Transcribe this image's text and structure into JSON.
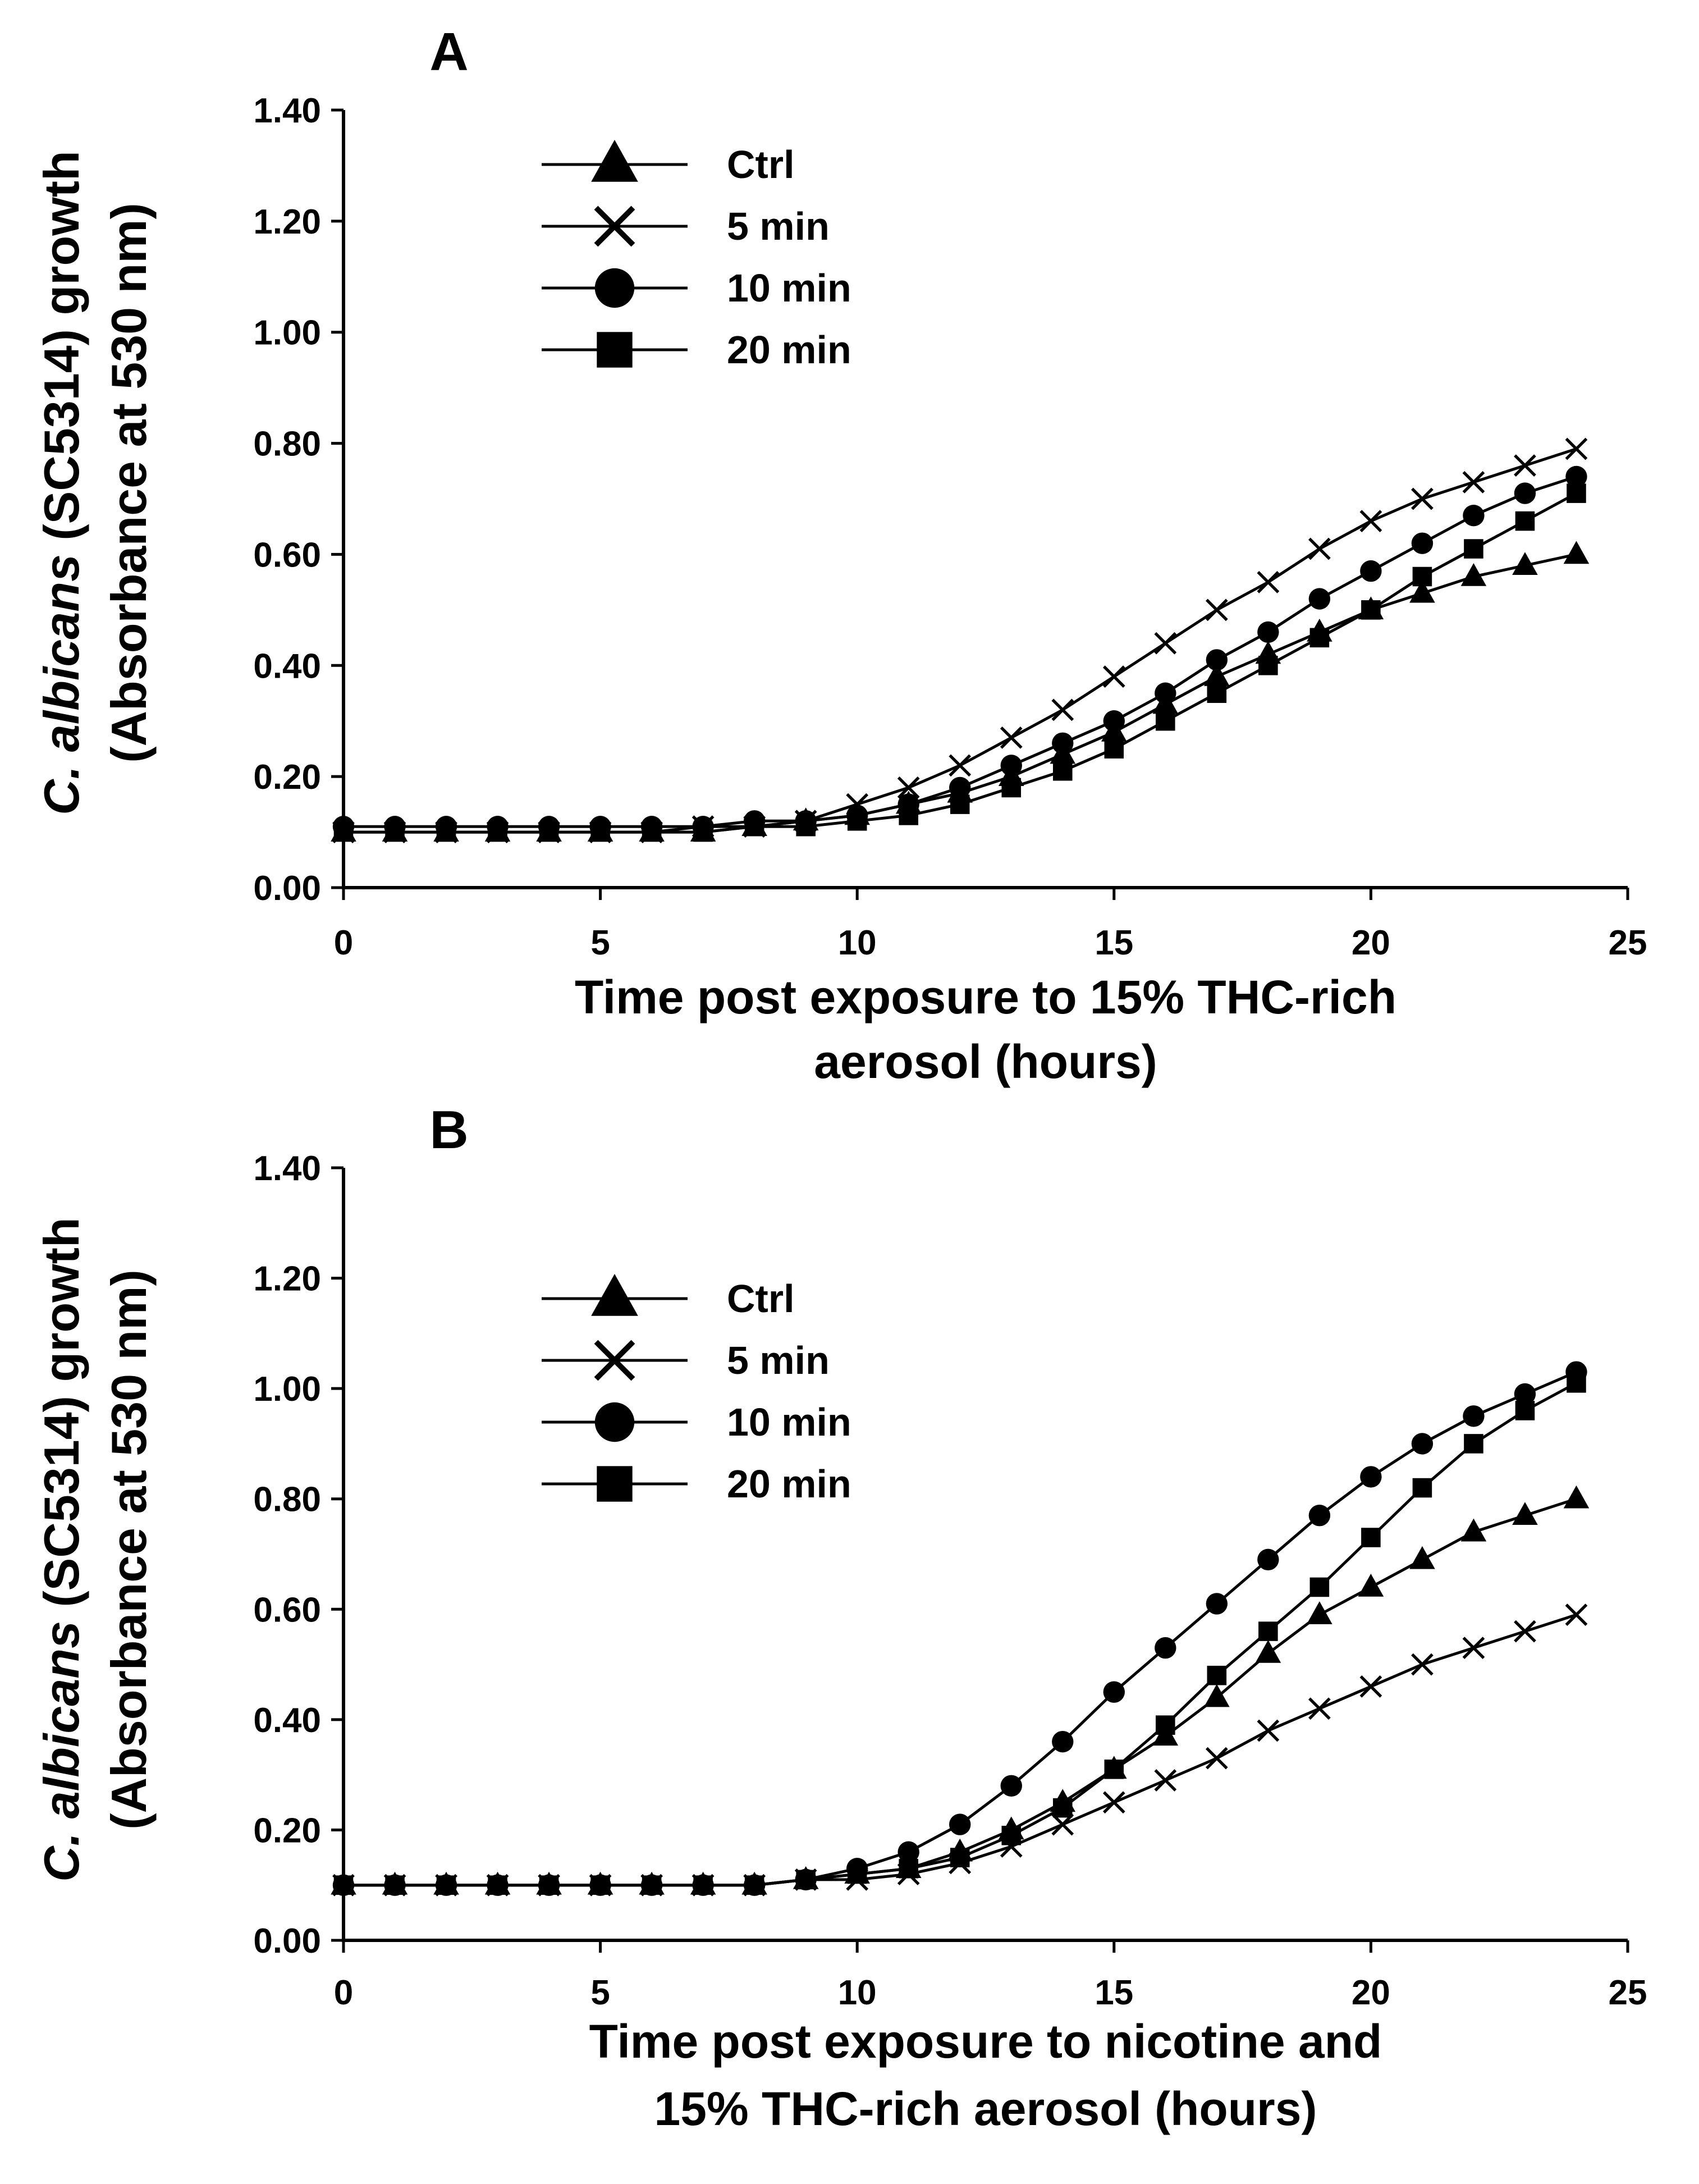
{
  "chart_data": [
    {
      "type": "line",
      "panel": "A",
      "x": [
        0,
        1,
        2,
        3,
        4,
        5,
        6,
        7,
        8,
        9,
        10,
        11,
        12,
        13,
        14,
        15,
        16,
        17,
        18,
        19,
        20,
        21,
        22,
        23,
        24
      ],
      "xlim": [
        0,
        25
      ],
      "xticks": [
        "0",
        "5",
        "10",
        "15",
        "20",
        "25"
      ],
      "ylim": [
        0,
        1.4
      ],
      "yticks": [
        "0.00",
        "0.20",
        "0.40",
        "0.60",
        "0.80",
        "1.00",
        "1.20",
        "1.40"
      ],
      "ylabel_part1": "C. albicans",
      "ylabel_part2": " (SC5314) growth",
      "ylabel_line2": "(Absorbance at  530 nm)",
      "xlabel_lines": [
        "Time post exposure to 15% THC-rich",
        "aerosol (hours)"
      ],
      "series": [
        {
          "name": "Ctrl",
          "marker": "triangle",
          "values": [
            0.1,
            0.1,
            0.1,
            0.1,
            0.1,
            0.1,
            0.1,
            0.1,
            0.11,
            0.12,
            0.13,
            0.15,
            0.17,
            0.2,
            0.24,
            0.28,
            0.33,
            0.38,
            0.42,
            0.46,
            0.5,
            0.53,
            0.56,
            0.58,
            0.6
          ]
        },
        {
          "name": "5 min",
          "marker": "x",
          "values": [
            0.1,
            0.1,
            0.1,
            0.1,
            0.1,
            0.1,
            0.1,
            0.11,
            0.11,
            0.12,
            0.15,
            0.18,
            0.22,
            0.27,
            0.32,
            0.38,
            0.44,
            0.5,
            0.55,
            0.61,
            0.66,
            0.7,
            0.73,
            0.76,
            0.79
          ]
        },
        {
          "name": "10 min",
          "marker": "circle",
          "values": [
            0.11,
            0.11,
            0.11,
            0.11,
            0.11,
            0.11,
            0.11,
            0.11,
            0.12,
            0.12,
            0.13,
            0.15,
            0.18,
            0.22,
            0.26,
            0.3,
            0.35,
            0.41,
            0.46,
            0.52,
            0.57,
            0.62,
            0.67,
            0.71,
            0.74
          ]
        },
        {
          "name": "20 min",
          "marker": "square",
          "values": [
            0.1,
            0.1,
            0.1,
            0.1,
            0.1,
            0.1,
            0.1,
            0.1,
            0.11,
            0.11,
            0.12,
            0.13,
            0.15,
            0.18,
            0.21,
            0.25,
            0.3,
            0.35,
            0.4,
            0.45,
            0.5,
            0.56,
            0.61,
            0.66,
            0.71
          ]
        }
      ]
    },
    {
      "type": "line",
      "panel": "B",
      "x": [
        0,
        1,
        2,
        3,
        4,
        5,
        6,
        7,
        8,
        9,
        10,
        11,
        12,
        13,
        14,
        15,
        16,
        17,
        18,
        19,
        20,
        21,
        22,
        23,
        24
      ],
      "xlim": [
        0,
        25
      ],
      "xticks": [
        "0",
        "5",
        "10",
        "15",
        "20",
        "25"
      ],
      "ylim": [
        0,
        1.4
      ],
      "yticks": [
        "0.00",
        "0.20",
        "0.40",
        "0.60",
        "0.80",
        "1.00",
        "1.20",
        "1.40"
      ],
      "ylabel_part1": "C. albicans",
      "ylabel_part2": " (SC5314) growth",
      "ylabel_line2": "(Absorbance at  530 nm)",
      "xlabel_lines": [
        "Time post exposure to nicotine and",
        "15% THC-rich aerosol (hours)"
      ],
      "series": [
        {
          "name": "Ctrl",
          "marker": "triangle",
          "values": [
            0.1,
            0.1,
            0.1,
            0.1,
            0.1,
            0.1,
            0.1,
            0.1,
            0.1,
            0.11,
            0.12,
            0.13,
            0.16,
            0.2,
            0.25,
            0.31,
            0.37,
            0.44,
            0.52,
            0.59,
            0.64,
            0.69,
            0.74,
            0.77,
            0.8
          ]
        },
        {
          "name": "5 min",
          "marker": "x",
          "values": [
            0.1,
            0.1,
            0.1,
            0.1,
            0.1,
            0.1,
            0.1,
            0.1,
            0.1,
            0.11,
            0.11,
            0.12,
            0.14,
            0.17,
            0.21,
            0.25,
            0.29,
            0.33,
            0.38,
            0.42,
            0.46,
            0.5,
            0.53,
            0.56,
            0.59
          ]
        },
        {
          "name": "10 min",
          "marker": "circle",
          "values": [
            0.1,
            0.1,
            0.1,
            0.1,
            0.1,
            0.1,
            0.1,
            0.1,
            0.1,
            0.11,
            0.13,
            0.16,
            0.21,
            0.28,
            0.36,
            0.45,
            0.53,
            0.61,
            0.69,
            0.77,
            0.84,
            0.9,
            0.95,
            0.99,
            1.03
          ]
        },
        {
          "name": "20 min",
          "marker": "square",
          "values": [
            0.1,
            0.1,
            0.1,
            0.1,
            0.1,
            0.1,
            0.1,
            0.1,
            0.1,
            0.11,
            0.12,
            0.13,
            0.15,
            0.19,
            0.24,
            0.31,
            0.39,
            0.48,
            0.56,
            0.64,
            0.73,
            0.82,
            0.9,
            0.96,
            1.01
          ]
        }
      ]
    }
  ]
}
